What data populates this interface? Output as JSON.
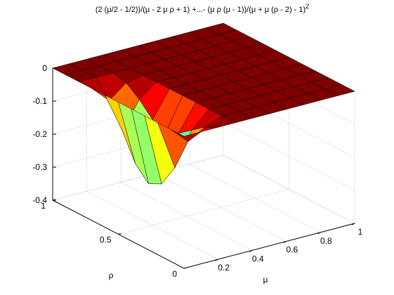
{
  "chart_data": {
    "type": "surface",
    "title": "(2 (μ/2 - 1/2))/(μ - 2 μ ρ + 1) +...- (μ ρ (μ - 1))/(μ + μ (ρ - 2) - 1)",
    "title_exponent": "2",
    "xlabel": "μ",
    "ylabel": "ρ",
    "colormap": "jet",
    "grid": true,
    "xlim": [
      0,
      1
    ],
    "ylim": [
      0,
      1
    ],
    "zlim": [
      -0.4,
      0
    ],
    "xticks": [
      0.2,
      0.4,
      0.6,
      0.8,
      1
    ],
    "yticks": [
      0,
      0.5,
      1
    ],
    "zticks": [
      -0.4,
      -0.3,
      -0.2,
      -0.1,
      0
    ],
    "x": [
      0,
      0.1,
      0.2,
      0.3,
      0.4,
      0.5,
      0.6,
      0.7,
      0.8,
      0.9,
      1
    ],
    "y": [
      0,
      0.1,
      0.2,
      0.3,
      0.4,
      0.5,
      0.6,
      0.7,
      0.8,
      0.9,
      1
    ],
    "z": [
      [
        0,
        0,
        0,
        0,
        0,
        0,
        0,
        0,
        0,
        0,
        0
      ],
      [
        0,
        -0.05,
        -0.02,
        0,
        0,
        0,
        0,
        0,
        0,
        0,
        0
      ],
      [
        0,
        -0.15,
        -0.05,
        0,
        0,
        0,
        0,
        0,
        0,
        0,
        0
      ],
      [
        0,
        -0.22,
        -0.08,
        0,
        0,
        0,
        0,
        0,
        0,
        0,
        0
      ],
      [
        0,
        -0.24,
        -0.1,
        0,
        0,
        0,
        0,
        0,
        0,
        0,
        0
      ],
      [
        0,
        -0.2,
        -0.08,
        0,
        0,
        0,
        0,
        0,
        0,
        0,
        0
      ],
      [
        0,
        -0.12,
        -0.04,
        0,
        0,
        0,
        0,
        0,
        0,
        0,
        0
      ],
      [
        0,
        -0.05,
        -0.01,
        0,
        0,
        0,
        0,
        0,
        0,
        0,
        0
      ],
      [
        0,
        0,
        0,
        0,
        0,
        0,
        0,
        0,
        0,
        0,
        0
      ],
      [
        0,
        0,
        0,
        0,
        0,
        0,
        0,
        0,
        0,
        0,
        0
      ],
      [
        0,
        0,
        0,
        0,
        0,
        0,
        0,
        0,
        0,
        0,
        0
      ]
    ]
  }
}
